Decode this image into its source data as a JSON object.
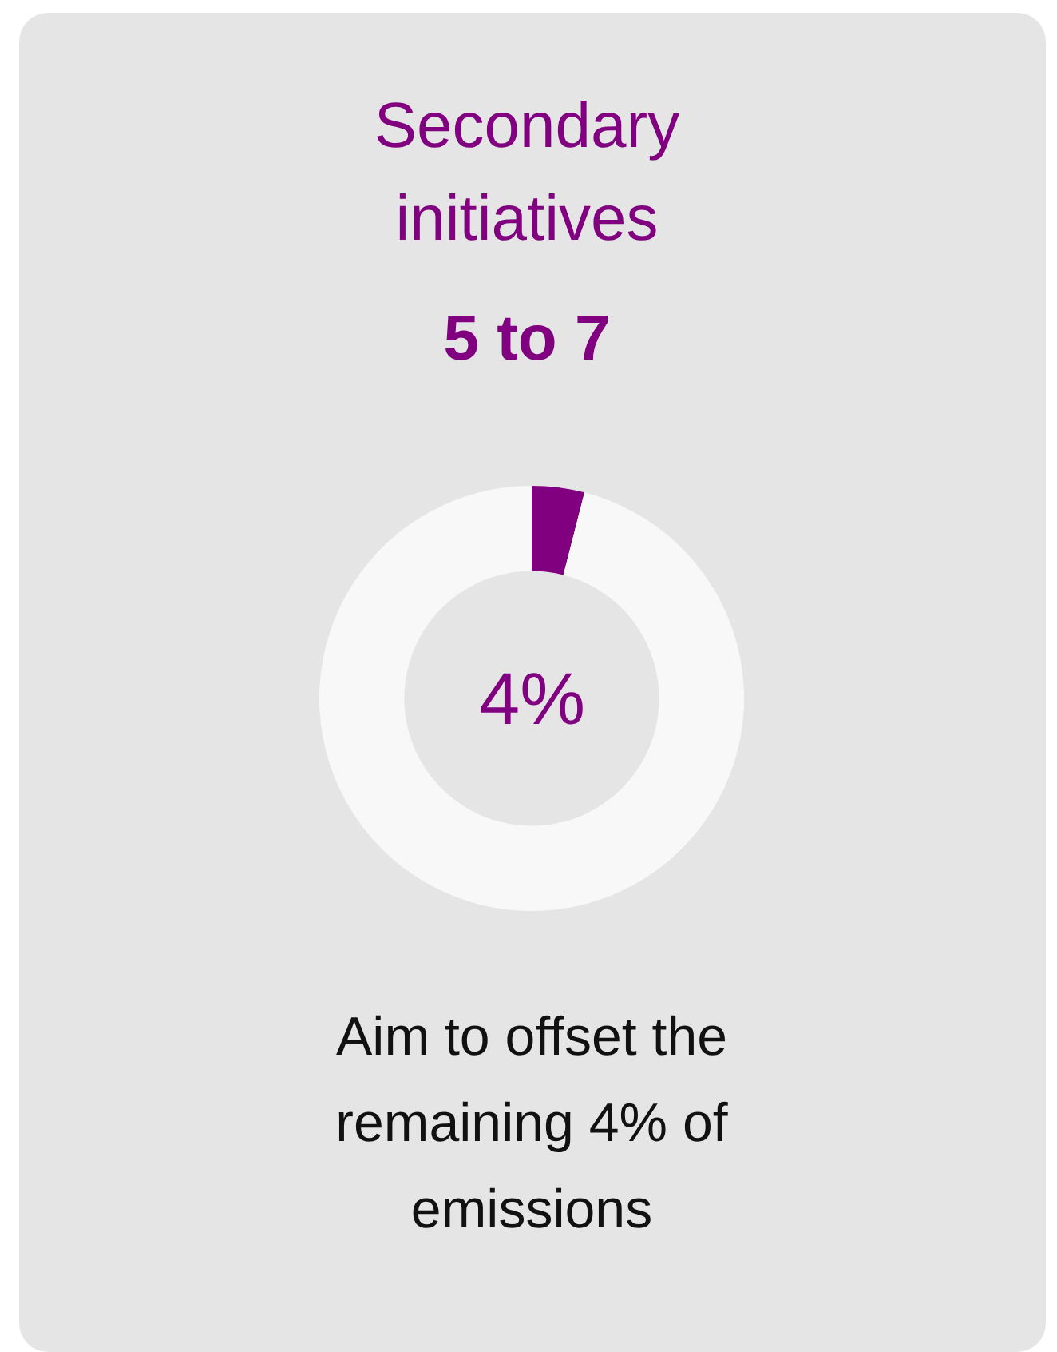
{
  "chart_data": {
    "type": "donut",
    "title": "Secondary initiatives",
    "subtitle": "5 to 7",
    "categories": [
      null,
      null
    ],
    "values": [
      4,
      96
    ],
    "colors": [
      "#800080",
      "#f8f8f8"
    ],
    "value_labels": [
      "4%",
      null
    ],
    "annotations": [
      "Aim to offset the remaining 4% of emissions"
    ]
  }
}
